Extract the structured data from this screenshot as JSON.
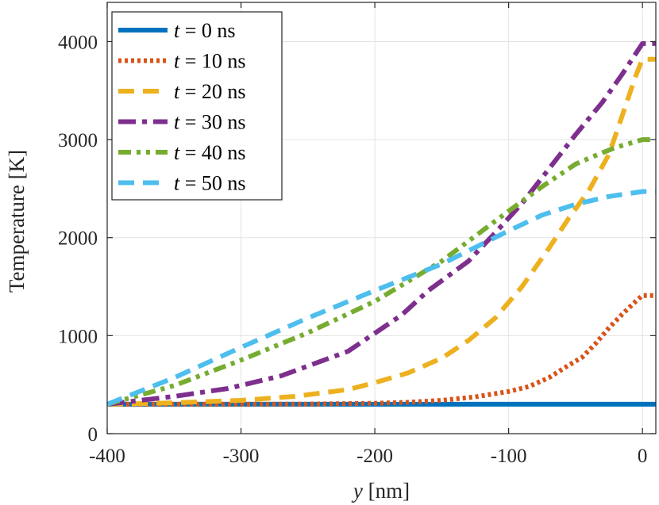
{
  "chart_data": {
    "type": "line",
    "title": "",
    "xlabel_var": "y",
    "xlabel_unit": " [nm]",
    "ylabel": "Temperature [K]",
    "xlim": [
      -400,
      10
    ],
    "ylim": [
      0,
      4400
    ],
    "xticks": [
      -400,
      -300,
      -200,
      -100,
      0
    ],
    "xtick_labels": [
      "-400",
      "-300",
      "-200",
      "-100",
      "0"
    ],
    "yticks": [
      0,
      1000,
      2000,
      3000,
      4000
    ],
    "ytick_labels": [
      "0",
      "1000",
      "2000",
      "3000",
      "4000"
    ],
    "grid": true,
    "legend_position": "top-left",
    "series": [
      {
        "name": "t = 0 ns",
        "var": "t",
        "eq": " = ",
        "val": "0 ns",
        "color": "#0072BD",
        "style": "solid",
        "x": [
          -400,
          -300,
          -200,
          -100,
          0,
          10
        ],
        "y": [
          300,
          300,
          300,
          300,
          300,
          300
        ]
      },
      {
        "name": "t = 10 ns",
        "var": "t",
        "eq": " = ",
        "val": "10 ns",
        "color": "#D95319",
        "style": "dotted",
        "x": [
          -400,
          -350,
          -300,
          -250,
          -200,
          -175,
          -150,
          -125,
          -100,
          -85,
          -70,
          -55,
          -45,
          -35,
          -25,
          -15,
          -5,
          0,
          10
        ],
        "y": [
          300,
          300,
          300,
          302,
          310,
          320,
          340,
          375,
          430,
          480,
          570,
          700,
          780,
          920,
          1080,
          1220,
          1350,
          1410,
          1410
        ]
      },
      {
        "name": "t = 20 ns",
        "var": "t",
        "eq": " = ",
        "val": "20 ns",
        "color": "#EDB120",
        "style": "dashed",
        "x": [
          -400,
          -380,
          -350,
          -300,
          -260,
          -220,
          -200,
          -175,
          -150,
          -130,
          -110,
          -90,
          -70,
          -55,
          -40,
          -25,
          -15,
          -5,
          0,
          10
        ],
        "y": [
          300,
          305,
          315,
          340,
          380,
          450,
          520,
          620,
          770,
          950,
          1180,
          1500,
          1890,
          2200,
          2480,
          2850,
          3250,
          3650,
          3820,
          3820
        ]
      },
      {
        "name": "t = 30 ns",
        "var": "t",
        "eq": " = ",
        "val": "30 ns",
        "color": "#7E2F8E",
        "style": "dashdot",
        "x": [
          -400,
          -350,
          -310,
          -270,
          -220,
          -180,
          -160,
          -130,
          -110,
          -90,
          -70,
          -50,
          -30,
          -15,
          0,
          10
        ],
        "y": [
          300,
          380,
          460,
          590,
          840,
          1210,
          1460,
          1760,
          2050,
          2350,
          2700,
          3050,
          3380,
          3670,
          3980,
          3980
        ]
      },
      {
        "name": "t = 40 ns",
        "var": "t",
        "eq": " = ",
        "val": "40 ns",
        "color": "#77AC30",
        "style": "dashdotdot",
        "x": [
          -400,
          -350,
          -300,
          -250,
          -200,
          -150,
          -100,
          -75,
          -50,
          -40,
          -20,
          0,
          10
        ],
        "y": [
          300,
          490,
          750,
          1030,
          1350,
          1760,
          2270,
          2520,
          2750,
          2810,
          2920,
          3000,
          3000
        ]
      },
      {
        "name": "t = 50 ns",
        "var": "t",
        "eq": " = ",
        "val": "50 ns",
        "color": "#4DBEEE",
        "style": "dashed",
        "x": [
          -400,
          -350,
          -300,
          -250,
          -200,
          -150,
          -100,
          -75,
          -50,
          -25,
          0,
          10
        ],
        "y": [
          300,
          570,
          880,
          1180,
          1460,
          1730,
          2070,
          2230,
          2340,
          2420,
          2470,
          2470
        ]
      }
    ]
  }
}
